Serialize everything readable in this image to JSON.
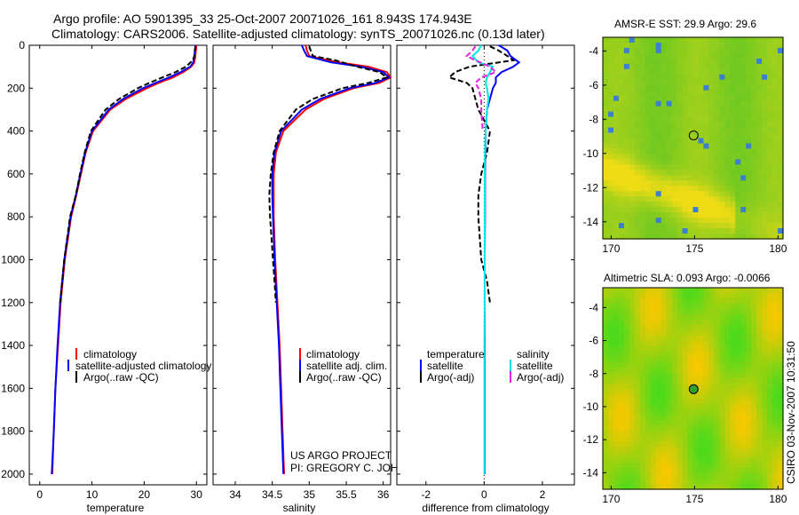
{
  "title": {
    "line1": "Argo profile: AO 5901395_33 25-Oct-2007 20071026_161 8.943S 174.943E",
    "line2": "Climatology: CARS2006. Satellite-adjusted climatology: synTS_20071026.nc (0.13d later)"
  },
  "side_stamp": "CSIRO 03-Nov-2007 10:31:50",
  "credits": {
    "line1": "US ARGO PROJECT",
    "line2": "PI: GREGORY C. JOHNSON"
  },
  "colors": {
    "climatology": "#ff0000",
    "satellite": "#0000ff",
    "argo": "#000000",
    "salinity_sat": "#00e5e5",
    "salinity_argo": "#e020e0"
  },
  "chart_data": [
    {
      "type": "line",
      "id": "temperature",
      "xlabel": "temperature",
      "ylabel": "",
      "xlim": [
        -2,
        32
      ],
      "ylim": [
        2050,
        0
      ],
      "xticks": [
        0,
        10,
        20,
        30
      ],
      "yticks": [
        0,
        200,
        400,
        600,
        800,
        1000,
        1200,
        1400,
        1600,
        1800,
        2000
      ],
      "legend": [
        "climatology",
        "satellite-adjusted climatology",
        "Argo(..raw -QC)"
      ],
      "series": [
        {
          "name": "climatology",
          "color": "#ff0000",
          "dash": "",
          "depth": [
            0,
            25,
            50,
            80,
            100,
            125,
            150,
            175,
            200,
            250,
            300,
            400,
            500,
            600,
            700,
            800,
            1000,
            1200,
            1400,
            1600,
            1800,
            2000
          ],
          "values": [
            30.0,
            29.9,
            29.8,
            29.6,
            29.0,
            27.5,
            25.5,
            22.8,
            20.5,
            16.5,
            13.5,
            10.2,
            8.8,
            7.9,
            7.0,
            6.0,
            4.8,
            4.0,
            3.5,
            3.0,
            2.7,
            2.4
          ]
        },
        {
          "name": "satellite-adjusted climatology",
          "color": "#0000ff",
          "dash": "",
          "depth": [
            0,
            25,
            50,
            80,
            100,
            125,
            150,
            175,
            200,
            250,
            300,
            400,
            500,
            600,
            700,
            800,
            1000,
            1200,
            1400,
            1600,
            1800,
            2000
          ],
          "values": [
            29.8,
            29.7,
            29.6,
            29.4,
            28.8,
            27.0,
            24.8,
            22.2,
            19.8,
            16.0,
            13.2,
            10.0,
            8.7,
            7.8,
            6.9,
            5.9,
            4.7,
            3.9,
            3.4,
            3.0,
            2.7,
            2.3
          ]
        },
        {
          "name": "Argo(..raw -QC)",
          "color": "#000000",
          "dash": "6 3",
          "depth": [
            5,
            25,
            50,
            70,
            100,
            125,
            150,
            175,
            200,
            250,
            300,
            400,
            500,
            600,
            700,
            800,
            1000,
            1100,
            1200
          ],
          "values": [
            29.8,
            29.7,
            29.6,
            29.3,
            28.0,
            26.0,
            23.5,
            21.0,
            18.8,
            15.2,
            12.6,
            9.8,
            8.6,
            7.7,
            6.9,
            5.8,
            4.7,
            4.3,
            3.9
          ]
        }
      ]
    },
    {
      "type": "line",
      "id": "salinity",
      "xlabel": "salinity",
      "ylabel": "",
      "xlim": [
        33.7,
        36.1
      ],
      "ylim": [
        2050,
        0
      ],
      "xticks": [
        34,
        34.5,
        35,
        35.5,
        36
      ],
      "legend": [
        "climatology",
        "satellite adj. clim.",
        "Argo(..raw -QC)"
      ],
      "series": [
        {
          "name": "climatology",
          "color": "#ff0000",
          "dash": "",
          "depth": [
            0,
            25,
            50,
            80,
            100,
            125,
            150,
            175,
            200,
            250,
            300,
            400,
            500,
            600,
            700,
            800,
            1000,
            1200,
            1400,
            1600,
            1800,
            2000
          ],
          "values": [
            34.95,
            34.97,
            35.0,
            35.4,
            35.8,
            36.05,
            36.1,
            35.95,
            35.6,
            35.2,
            34.95,
            34.65,
            34.55,
            34.52,
            34.52,
            34.52,
            34.54,
            34.57,
            34.6,
            34.62,
            34.64,
            34.66
          ]
        },
        {
          "name": "satellite adj. clim.",
          "color": "#0000ff",
          "dash": "",
          "depth": [
            0,
            25,
            50,
            80,
            100,
            125,
            150,
            175,
            200,
            250,
            300,
            400,
            500,
            600,
            700,
            800,
            1000,
            1200,
            1400,
            1600,
            1800,
            2000
          ],
          "values": [
            34.9,
            34.93,
            34.97,
            35.3,
            35.7,
            36.0,
            36.08,
            35.9,
            35.55,
            35.15,
            34.9,
            34.62,
            34.53,
            34.5,
            34.5,
            34.51,
            34.53,
            34.56,
            34.59,
            34.61,
            34.63,
            34.65
          ]
        },
        {
          "name": "Argo(..raw -QC)",
          "color": "#000000",
          "dash": "6 3",
          "depth": [
            5,
            25,
            50,
            70,
            100,
            125,
            150,
            175,
            200,
            250,
            300,
            400,
            500,
            600,
            700,
            800,
            1000,
            1100,
            1200
          ],
          "values": [
            35.0,
            35.02,
            35.05,
            35.35,
            35.65,
            35.95,
            36.05,
            35.8,
            35.45,
            35.05,
            34.82,
            34.6,
            34.52,
            34.48,
            34.46,
            34.47,
            34.51,
            34.53,
            34.55
          ]
        }
      ]
    },
    {
      "type": "line",
      "id": "difference",
      "xlabel": "difference from climatology",
      "ylabel": "",
      "xlim": [
        -3,
        3.1
      ],
      "ylim": [
        2050,
        0
      ],
      "xticks": [
        -2,
        0,
        2
      ],
      "legend_left_title": "temperature",
      "legend_right_title": "salinity",
      "legend": [
        "satellite",
        "Argo(-adj)",
        "satellite",
        "Argo(-adj)"
      ],
      "series": [
        {
          "name": "temperature satellite",
          "color": "#0000ff",
          "dash": "",
          "depth": [
            0,
            25,
            50,
            80,
            100,
            125,
            150,
            175,
            200,
            250,
            300,
            400,
            500,
            600,
            800,
            1000,
            1200,
            1400,
            1600,
            1800,
            2000
          ],
          "values": [
            0.5,
            0.8,
            0.9,
            1.2,
            1.0,
            0.6,
            0.4,
            0.4,
            0.3,
            0.2,
            0.1,
            0.05,
            0.04,
            0.03,
            0.03,
            0.02,
            0.02,
            0.02,
            0.02,
            0.02,
            0.02
          ]
        },
        {
          "name": "temperature Argo(-adj)",
          "color": "#000000",
          "dash": "6 3",
          "depth": [
            5,
            25,
            50,
            70,
            100,
            125,
            150,
            175,
            200,
            250,
            300,
            400,
            500,
            600,
            700,
            800,
            1000,
            1100,
            1200
          ],
          "values": [
            0.2,
            0.5,
            0.8,
            1.0,
            -0.5,
            -1.0,
            -1.2,
            -0.6,
            -0.4,
            -0.3,
            -0.2,
            0.2,
            0.1,
            -0.1,
            -0.2,
            -0.2,
            -0.1,
            0.1,
            0.2
          ]
        },
        {
          "name": "salinity satellite",
          "color": "#00e5e5",
          "dash": "",
          "depth": [
            0,
            25,
            50,
            80,
            100,
            125,
            150,
            175,
            200,
            250,
            300,
            400,
            500,
            600,
            800,
            1000,
            1200,
            1400,
            1600,
            1800,
            2000
          ],
          "values": [
            -0.1,
            -0.2,
            -0.4,
            -0.2,
            0.3,
            0.2,
            0.1,
            0.05,
            0.1,
            0.15,
            0.1,
            0.05,
            0.03,
            0.02,
            0.02,
            0.02,
            0.02,
            0.01,
            0.01,
            0.01,
            0.01
          ]
        },
        {
          "name": "salinity Argo(-adj)",
          "color": "#e020e0",
          "dash": "6 3",
          "depth": [
            5,
            25,
            50,
            70,
            100,
            125,
            150,
            175,
            200,
            250,
            300,
            400
          ],
          "values": [
            -0.3,
            -0.4,
            -0.6,
            -0.3,
            0.2,
            0.4,
            -0.1,
            -0.3,
            -0.2,
            -0.1,
            -0.1,
            -0.05
          ]
        }
      ]
    },
    {
      "type": "heatmap",
      "id": "sst_map",
      "title": "AMSR-E SST: 29.9 Argo: 29.6",
      "xlim": [
        169.5,
        180.3
      ],
      "ylim": [
        -15,
        -3.2
      ],
      "xticks": [
        170,
        175,
        180
      ],
      "yticks": [
        -4,
        -6,
        -8,
        -10,
        -12,
        -14
      ],
      "marker": {
        "lon": 174.943,
        "lat": -8.943
      }
    },
    {
      "type": "heatmap",
      "id": "sla_map",
      "title": "Altimetric SLA: 0.093 Argo: -0.0066",
      "xlim": [
        169.5,
        180.3
      ],
      "ylim": [
        -15,
        -2.8
      ],
      "xticks": [
        170,
        175,
        180
      ],
      "yticks": [
        -4,
        -6,
        -8,
        -10,
        -12,
        -14
      ],
      "marker": {
        "lon": 174.943,
        "lat": -8.943
      }
    }
  ]
}
